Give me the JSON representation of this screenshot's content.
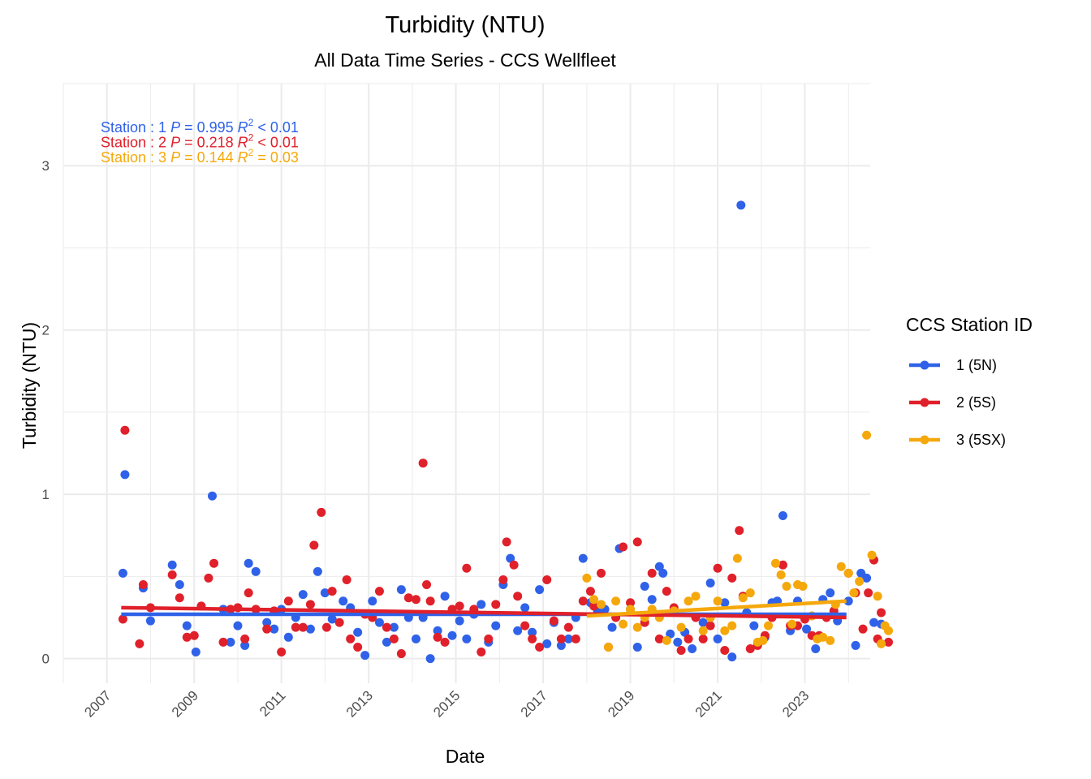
{
  "chart_data": {
    "type": "scatter",
    "title": "Turbidity (NTU)",
    "subtitle": "All Data Time Series - CCS Wellfleet",
    "xlabel": "Date",
    "ylabel": "Turbidity (NTU)",
    "xlim": [
      "2006-01-01",
      "2024-07-01"
    ],
    "ylim": [
      -0.15,
      3.5
    ],
    "x_ticks": [
      "2007",
      "2009",
      "2011",
      "2013",
      "2015",
      "2017",
      "2019",
      "2021",
      "2023"
    ],
    "y_ticks": [
      0,
      1,
      2,
      3
    ],
    "grid": true,
    "legend": {
      "title": "CCS Station ID",
      "position": "right",
      "entries": [
        "1 (5N)",
        "2 (5S)",
        "3 (5SX)"
      ]
    },
    "series": [
      {
        "name": "1 (5N)",
        "color": "#2f62e8",
        "trend": {
          "x": [
            "2007-05-01",
            "2023-12-15"
          ],
          "y": [
            0.27,
            0.27
          ]
        },
        "stats": {
          "station": "1",
          "p": "0.995",
          "r2": "< 0.01"
        },
        "points": [
          [
            "2007-05-15",
            0.52
          ],
          [
            "2007-06-01",
            1.12
          ],
          [
            "2007-11-01",
            0.43
          ],
          [
            "2008-01-01",
            0.23
          ],
          [
            "2008-07-01",
            0.57
          ],
          [
            "2008-09-01",
            0.45
          ],
          [
            "2008-11-01",
            0.2
          ],
          [
            "2009-01-15",
            0.04
          ],
          [
            "2009-06-01",
            0.99
          ],
          [
            "2009-09-01",
            0.3
          ],
          [
            "2009-11-01",
            0.1
          ],
          [
            "2010-01-01",
            0.2
          ],
          [
            "2010-03-01",
            0.08
          ],
          [
            "2010-04-01",
            0.58
          ],
          [
            "2010-06-01",
            0.53
          ],
          [
            "2010-09-01",
            0.22
          ],
          [
            "2010-11-01",
            0.18
          ],
          [
            "2011-01-01",
            0.3
          ],
          [
            "2011-03-01",
            0.13
          ],
          [
            "2011-05-01",
            0.25
          ],
          [
            "2011-07-01",
            0.39
          ],
          [
            "2011-09-01",
            0.18
          ],
          [
            "2011-11-01",
            0.53
          ],
          [
            "2012-01-01",
            0.4
          ],
          [
            "2012-03-01",
            0.24
          ],
          [
            "2012-06-01",
            0.35
          ],
          [
            "2012-08-01",
            0.31
          ],
          [
            "2012-10-01",
            0.16
          ],
          [
            "2012-12-01",
            0.02
          ],
          [
            "2013-02-01",
            0.35
          ],
          [
            "2013-04-01",
            0.22
          ],
          [
            "2013-06-01",
            0.1
          ],
          [
            "2013-08-01",
            0.19
          ],
          [
            "2013-10-01",
            0.42
          ],
          [
            "2013-12-01",
            0.25
          ],
          [
            "2014-02-01",
            0.12
          ],
          [
            "2014-04-01",
            0.25
          ],
          [
            "2014-06-01",
            0.0
          ],
          [
            "2014-08-01",
            0.17
          ],
          [
            "2014-10-01",
            0.38
          ],
          [
            "2014-12-01",
            0.14
          ],
          [
            "2015-02-01",
            0.23
          ],
          [
            "2015-04-01",
            0.12
          ],
          [
            "2015-06-01",
            0.27
          ],
          [
            "2015-08-01",
            0.33
          ],
          [
            "2015-10-01",
            0.1
          ],
          [
            "2015-12-01",
            0.2
          ],
          [
            "2016-02-01",
            0.45
          ],
          [
            "2016-04-01",
            0.61
          ],
          [
            "2016-06-01",
            0.17
          ],
          [
            "2016-08-01",
            0.31
          ],
          [
            "2016-10-01",
            0.16
          ],
          [
            "2016-12-01",
            0.42
          ],
          [
            "2017-02-01",
            0.09
          ],
          [
            "2017-04-01",
            0.22
          ],
          [
            "2017-06-01",
            0.08
          ],
          [
            "2017-08-01",
            0.12
          ],
          [
            "2017-10-01",
            0.25
          ],
          [
            "2017-12-01",
            0.61
          ],
          [
            "2018-02-01",
            0.34
          ],
          [
            "2018-04-01",
            0.29
          ],
          [
            "2018-06-01",
            0.3
          ],
          [
            "2018-08-01",
            0.19
          ],
          [
            "2018-10-01",
            0.67
          ],
          [
            "2019-01-01",
            0.3
          ],
          [
            "2019-03-01",
            0.07
          ],
          [
            "2019-05-01",
            0.44
          ],
          [
            "2019-07-01",
            0.36
          ],
          [
            "2019-09-01",
            0.56
          ],
          [
            "2019-10-01",
            0.52
          ],
          [
            "2019-12-01",
            0.15
          ],
          [
            "2020-02-01",
            0.1
          ],
          [
            "2020-04-01",
            0.16
          ],
          [
            "2020-06-01",
            0.06
          ],
          [
            "2020-09-01",
            0.22
          ],
          [
            "2020-11-01",
            0.46
          ],
          [
            "2021-01-01",
            0.12
          ],
          [
            "2021-03-01",
            0.34
          ],
          [
            "2021-05-01",
            0.01
          ],
          [
            "2021-07-15",
            2.76
          ],
          [
            "2021-09-01",
            0.28
          ],
          [
            "2021-11-01",
            0.2
          ],
          [
            "2022-02-01",
            0.13
          ],
          [
            "2022-04-01",
            0.34
          ],
          [
            "2022-05-15",
            0.35
          ],
          [
            "2022-07-01",
            0.87
          ],
          [
            "2022-09-01",
            0.17
          ],
          [
            "2022-11-01",
            0.35
          ],
          [
            "2023-01-15",
            0.18
          ],
          [
            "2023-04-01",
            0.06
          ],
          [
            "2023-06-01",
            0.36
          ],
          [
            "2023-08-01",
            0.4
          ],
          [
            "2023-10-01",
            0.23
          ],
          [
            "2024-01-01",
            0.35
          ],
          [
            "2024-03-01",
            0.08
          ],
          [
            "2024-04-15",
            0.52
          ],
          [
            "2024-06-01",
            0.49
          ],
          [
            "2024-08-01",
            0.22
          ],
          [
            "2024-10-01",
            0.21
          ]
        ]
      },
      {
        "name": "2 (5S)",
        "color": "#e0202a",
        "trend": {
          "x": [
            "2007-05-01",
            "2023-12-15"
          ],
          "y": [
            0.31,
            0.25
          ]
        },
        "stats": {
          "station": "2",
          "p": "0.218",
          "r2": "< 0.01"
        },
        "points": [
          [
            "2007-05-15",
            0.24
          ],
          [
            "2007-06-01",
            1.39
          ],
          [
            "2007-10-01",
            0.09
          ],
          [
            "2007-11-01",
            0.45
          ],
          [
            "2008-01-01",
            0.31
          ],
          [
            "2008-07-01",
            0.51
          ],
          [
            "2008-09-01",
            0.37
          ],
          [
            "2008-11-01",
            0.13
          ],
          [
            "2009-01-01",
            0.14
          ],
          [
            "2009-03-01",
            0.32
          ],
          [
            "2009-05-01",
            0.49
          ],
          [
            "2009-06-15",
            0.58
          ],
          [
            "2009-09-01",
            0.1
          ],
          [
            "2009-11-01",
            0.3
          ],
          [
            "2010-01-01",
            0.31
          ],
          [
            "2010-03-01",
            0.12
          ],
          [
            "2010-04-01",
            0.4
          ],
          [
            "2010-06-01",
            0.3
          ],
          [
            "2010-09-01",
            0.18
          ],
          [
            "2010-11-01",
            0.29
          ],
          [
            "2011-01-01",
            0.04
          ],
          [
            "2011-03-01",
            0.35
          ],
          [
            "2011-05-01",
            0.19
          ],
          [
            "2011-07-01",
            0.19
          ],
          [
            "2011-09-01",
            0.33
          ],
          [
            "2011-10-01",
            0.69
          ],
          [
            "2011-12-01",
            0.89
          ],
          [
            "2012-01-15",
            0.19
          ],
          [
            "2012-03-01",
            0.41
          ],
          [
            "2012-05-01",
            0.22
          ],
          [
            "2012-07-01",
            0.48
          ],
          [
            "2012-08-01",
            0.12
          ],
          [
            "2012-10-01",
            0.07
          ],
          [
            "2012-12-01",
            0.27
          ],
          [
            "2013-02-01",
            0.25
          ],
          [
            "2013-04-01",
            0.41
          ],
          [
            "2013-06-01",
            0.19
          ],
          [
            "2013-08-01",
            0.12
          ],
          [
            "2013-10-01",
            0.03
          ],
          [
            "2013-12-01",
            0.37
          ],
          [
            "2014-02-01",
            0.36
          ],
          [
            "2014-04-01",
            1.19
          ],
          [
            "2014-05-01",
            0.45
          ],
          [
            "2014-06-01",
            0.35
          ],
          [
            "2014-08-01",
            0.13
          ],
          [
            "2014-10-01",
            0.1
          ],
          [
            "2014-12-01",
            0.3
          ],
          [
            "2015-02-01",
            0.32
          ],
          [
            "2015-04-01",
            0.55
          ],
          [
            "2015-06-01",
            0.3
          ],
          [
            "2015-08-01",
            0.04
          ],
          [
            "2015-10-01",
            0.12
          ],
          [
            "2015-12-01",
            0.33
          ],
          [
            "2016-02-01",
            0.48
          ],
          [
            "2016-03-01",
            0.71
          ],
          [
            "2016-05-01",
            0.57
          ],
          [
            "2016-06-01",
            0.38
          ],
          [
            "2016-08-01",
            0.2
          ],
          [
            "2016-10-01",
            0.12
          ],
          [
            "2016-12-01",
            0.07
          ],
          [
            "2017-02-01",
            0.48
          ],
          [
            "2017-04-01",
            0.23
          ],
          [
            "2017-06-01",
            0.12
          ],
          [
            "2017-08-01",
            0.19
          ],
          [
            "2017-10-01",
            0.12
          ],
          [
            "2017-12-01",
            0.35
          ],
          [
            "2018-02-01",
            0.41
          ],
          [
            "2018-03-01",
            0.32
          ],
          [
            "2018-05-01",
            0.52
          ],
          [
            "2018-07-01",
            0.07
          ],
          [
            "2018-09-01",
            0.25
          ],
          [
            "2018-11-01",
            0.68
          ],
          [
            "2019-01-01",
            0.34
          ],
          [
            "2019-03-01",
            0.71
          ],
          [
            "2019-05-01",
            0.22
          ],
          [
            "2019-07-01",
            0.52
          ],
          [
            "2019-09-01",
            0.12
          ],
          [
            "2019-11-01",
            0.41
          ],
          [
            "2020-01-01",
            0.31
          ],
          [
            "2020-03-01",
            0.05
          ],
          [
            "2020-05-01",
            0.12
          ],
          [
            "2020-07-01",
            0.25
          ],
          [
            "2020-09-01",
            0.12
          ],
          [
            "2020-11-01",
            0.2
          ],
          [
            "2021-01-01",
            0.55
          ],
          [
            "2021-03-01",
            0.05
          ],
          [
            "2021-05-01",
            0.49
          ],
          [
            "2021-07-01",
            0.78
          ],
          [
            "2021-08-01",
            0.38
          ],
          [
            "2021-10-01",
            0.06
          ],
          [
            "2021-12-01",
            0.08
          ],
          [
            "2022-02-01",
            0.14
          ],
          [
            "2022-04-01",
            0.25
          ],
          [
            "2022-07-01",
            0.57
          ],
          [
            "2022-09-01",
            0.2
          ],
          [
            "2022-11-01",
            0.2
          ],
          [
            "2023-01-01",
            0.24
          ],
          [
            "2023-03-01",
            0.14
          ],
          [
            "2023-05-01",
            0.14
          ],
          [
            "2023-07-01",
            0.25
          ],
          [
            "2023-09-01",
            0.29
          ],
          [
            "2024-01-01",
            0.52
          ],
          [
            "2024-03-01",
            0.4
          ],
          [
            "2024-05-01",
            0.18
          ],
          [
            "2024-06-15",
            0.4
          ],
          [
            "2024-08-01",
            0.6
          ],
          [
            "2024-09-01",
            0.12
          ],
          [
            "2024-10-01",
            0.28
          ],
          [
            "2024-12-01",
            0.1
          ]
        ]
      },
      {
        "name": "3 (5SX)",
        "color": "#f5a80c",
        "trend": {
          "x": [
            "2018-01-01",
            "2023-12-15"
          ],
          "y": [
            0.26,
            0.35
          ]
        },
        "stats": {
          "station": "3",
          "p": "0.144",
          "r2": "= 0.03"
        },
        "points": [
          [
            "2018-01-01",
            0.49
          ],
          [
            "2018-03-01",
            0.36
          ],
          [
            "2018-05-01",
            0.33
          ],
          [
            "2018-07-01",
            0.07
          ],
          [
            "2018-09-01",
            0.35
          ],
          [
            "2018-11-01",
            0.21
          ],
          [
            "2019-01-01",
            0.3
          ],
          [
            "2019-03-01",
            0.19
          ],
          [
            "2019-05-01",
            0.25
          ],
          [
            "2019-07-01",
            0.3
          ],
          [
            "2019-09-01",
            0.25
          ],
          [
            "2019-11-01",
            0.11
          ],
          [
            "2020-01-01",
            0.29
          ],
          [
            "2020-03-01",
            0.19
          ],
          [
            "2020-05-01",
            0.35
          ],
          [
            "2020-07-01",
            0.38
          ],
          [
            "2020-09-01",
            0.17
          ],
          [
            "2020-11-01",
            0.25
          ],
          [
            "2021-01-01",
            0.35
          ],
          [
            "2021-03-01",
            0.17
          ],
          [
            "2021-05-01",
            0.2
          ],
          [
            "2021-06-15",
            0.61
          ],
          [
            "2021-08-01",
            0.37
          ],
          [
            "2021-10-01",
            0.4
          ],
          [
            "2021-12-01",
            0.1
          ],
          [
            "2022-01-15",
            0.11
          ],
          [
            "2022-03-01",
            0.2
          ],
          [
            "2022-05-01",
            0.58
          ],
          [
            "2022-06-15",
            0.51
          ],
          [
            "2022-08-01",
            0.44
          ],
          [
            "2022-09-15",
            0.21
          ],
          [
            "2022-11-01",
            0.45
          ],
          [
            "2022-12-15",
            0.44
          ],
          [
            "2023-03-01",
            0.26
          ],
          [
            "2023-04-15",
            0.12
          ],
          [
            "2023-06-01",
            0.13
          ],
          [
            "2023-08-01",
            0.11
          ],
          [
            "2023-09-15",
            0.33
          ],
          [
            "2023-11-01",
            0.56
          ],
          [
            "2024-01-01",
            0.52
          ],
          [
            "2024-02-15",
            0.4
          ],
          [
            "2024-04-01",
            0.47
          ],
          [
            "2024-06-01",
            1.36
          ],
          [
            "2024-07-15",
            0.63
          ],
          [
            "2024-09-01",
            0.38
          ],
          [
            "2024-10-01",
            0.09
          ],
          [
            "2024-11-01",
            0.2
          ],
          [
            "2024-12-01",
            0.17
          ]
        ]
      }
    ]
  }
}
